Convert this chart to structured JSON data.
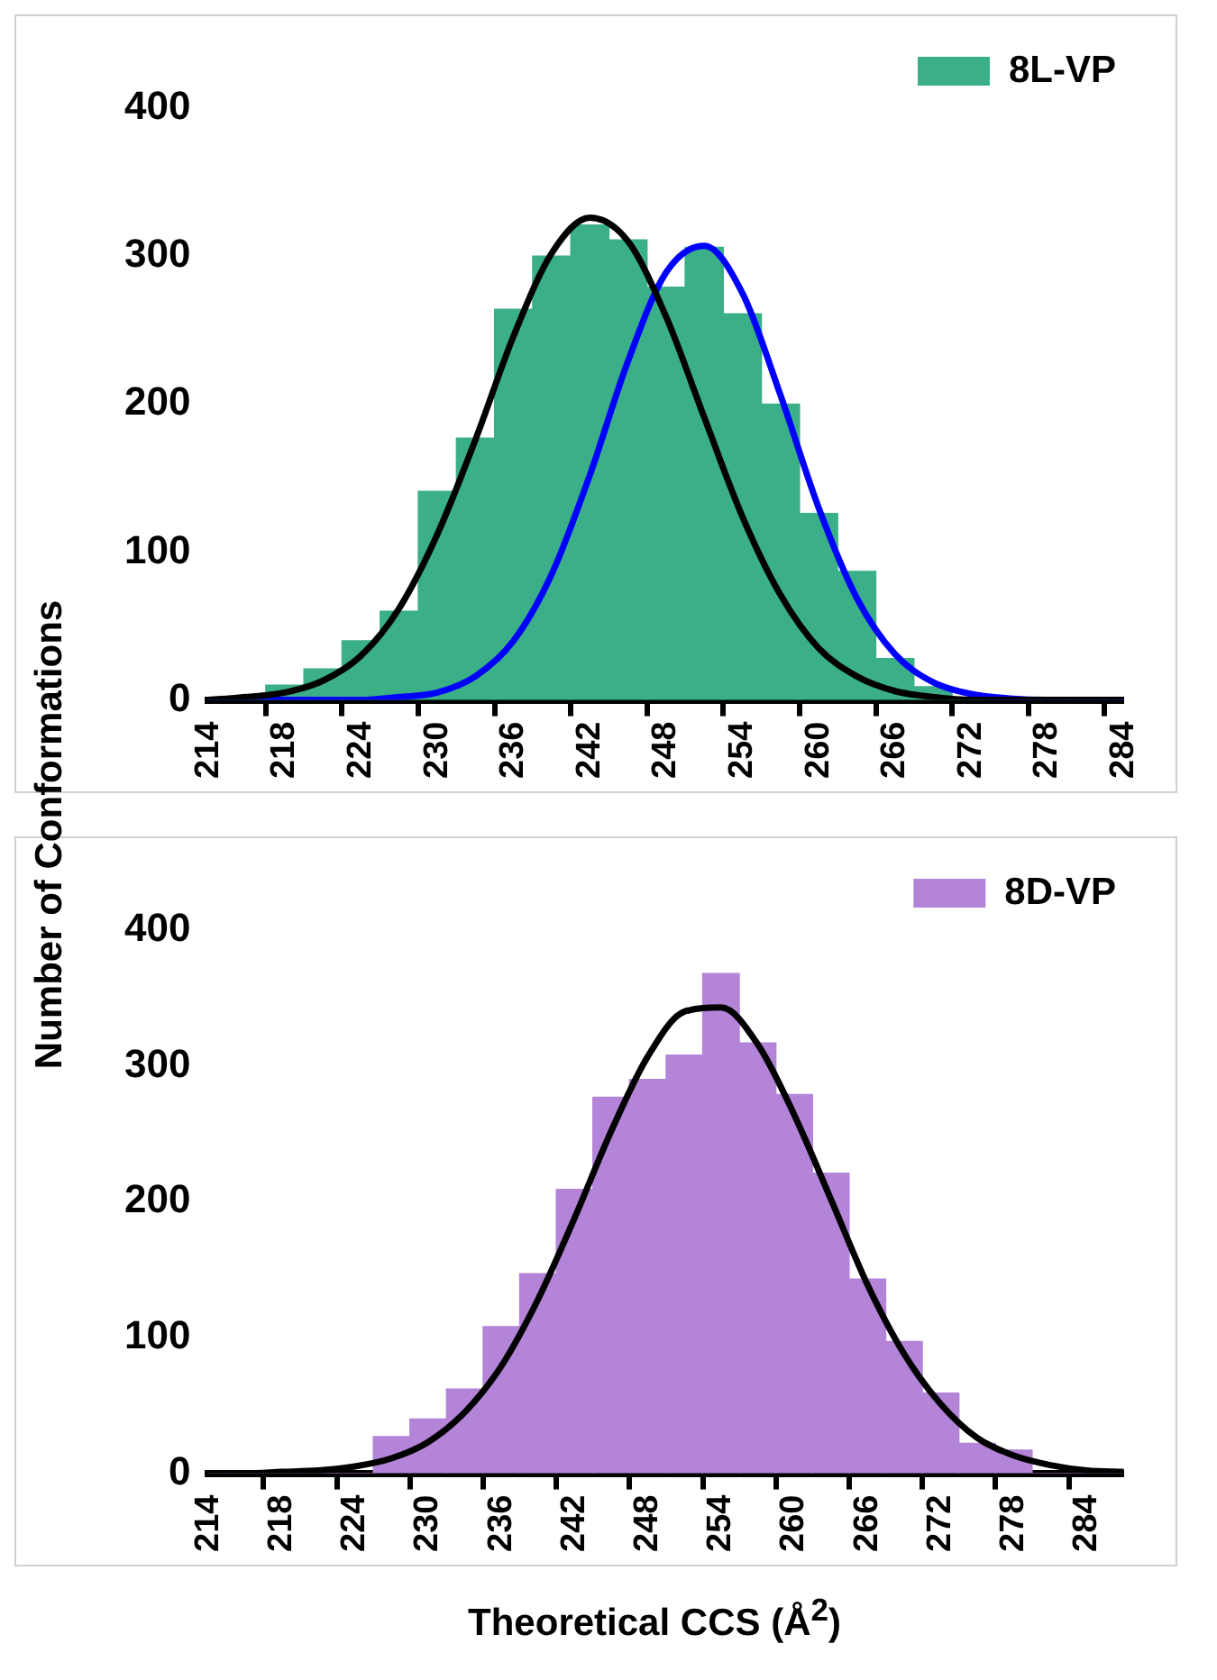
{
  "chart_data": [
    {
      "type": "bar",
      "ylabel": "Number of Conformations",
      "categories": [
        "214",
        null,
        "218",
        null,
        "224",
        null,
        "230",
        null,
        "236",
        null,
        "242",
        null,
        "248",
        null,
        "254",
        null,
        "260",
        null,
        "266",
        null,
        "272",
        null,
        "278",
        null,
        "284"
      ],
      "series": [
        {
          "name": "8L-VP",
          "color": "#3baf87",
          "values": [
            0,
            0,
            10,
            21,
            40,
            60,
            141,
            177,
            264,
            300,
            321,
            311,
            279,
            306,
            261,
            200,
            126,
            87,
            28,
            9,
            0,
            0,
            0,
            0,
            0
          ]
        },
        {
          "type": "line",
          "color": "#000000",
          "values": [
            0,
            2,
            5,
            13,
            30,
            62,
            112,
            176,
            246,
            302,
            326,
            310,
            259,
            191,
            124,
            71,
            35,
            16,
            6,
            2,
            0,
            0,
            0,
            0,
            0
          ]
        },
        {
          "type": "line",
          "color": "#0000ff",
          "values": [
            0,
            0,
            0,
            0,
            0,
            2,
            5,
            16,
            40,
            85,
            152,
            229,
            289,
            307,
            275,
            206,
            130,
            69,
            31,
            12,
            4,
            1,
            0,
            0,
            0
          ]
        }
      ],
      "ylim": [
        0,
        400
      ],
      "yticks": [
        0,
        100,
        200,
        300,
        400
      ],
      "legend": "top right",
      "marker": "none",
      "grid": false
    },
    {
      "type": "bar",
      "xlabel": "Theoretical CCS (Å$^{2}$)",
      "categories": [
        "214",
        null,
        "218",
        null,
        "224",
        null,
        "230",
        null,
        "236",
        null,
        "242",
        null,
        "248",
        null,
        "254",
        null,
        "260",
        null,
        "266",
        null,
        "272",
        null,
        "278",
        null,
        "284",
        null
      ],
      "series": [
        {
          "name": "8D-VP",
          "color": "#b384d8",
          "values": [
            0,
            0,
            0,
            0,
            0,
            27,
            40,
            62,
            108,
            147,
            209,
            277,
            290,
            308,
            368,
            317,
            279,
            221,
            143,
            97,
            59,
            22,
            17,
            0,
            0,
            0
          ]
        },
        {
          "type": "line",
          "color": "#000000",
          "values": [
            0,
            0,
            1,
            2,
            5,
            11,
            23,
            45,
            79,
            128,
            188,
            252,
            307,
            340,
            343,
            316,
            264,
            202,
            139,
            88,
            51,
            26,
            13,
            6,
            2,
            1
          ]
        }
      ],
      "ylim": [
        0,
        400
      ],
      "yticks": [
        0,
        100,
        200,
        300,
        400
      ],
      "legend": "top right",
      "marker": "none",
      "grid": false
    }
  ]
}
